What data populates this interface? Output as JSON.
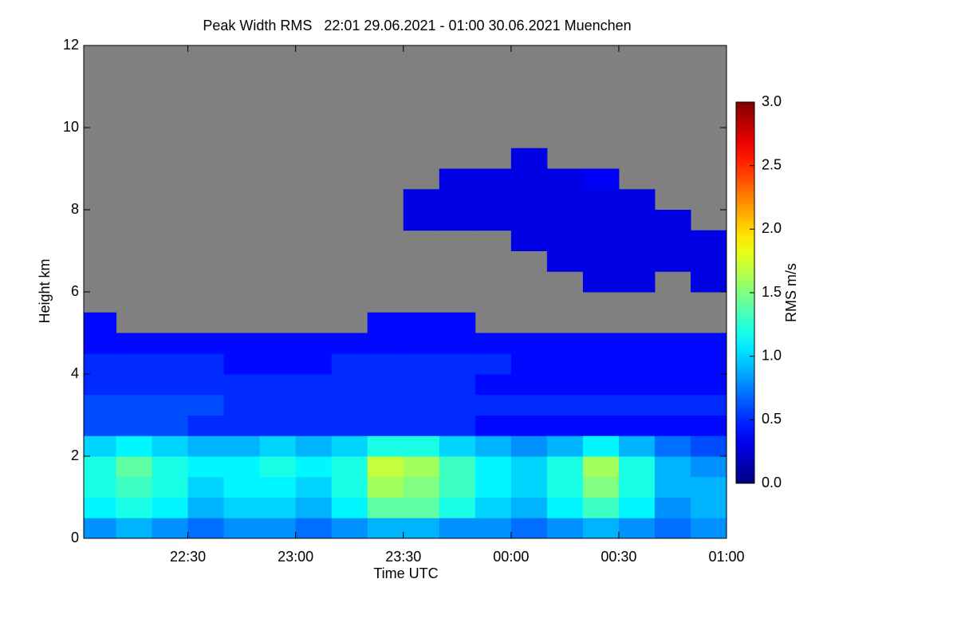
{
  "chart_data": {
    "type": "heatmap",
    "title": "Peak Width RMS   22:01 29.06.2021 - 01:00 30.06.2021 Muenchen",
    "x_label": "Time UTC",
    "y_label": "Height km",
    "colorbar_label": "RMS m/s",
    "xlim": [
      1,
      180
    ],
    "xticks": [
      {
        "value": 30,
        "label": "22:30"
      },
      {
        "value": 60,
        "label": "23:00"
      },
      {
        "value": 90,
        "label": "23:30"
      },
      {
        "value": 120,
        "label": "00:00"
      },
      {
        "value": 150,
        "label": "00:30"
      },
      {
        "value": 180,
        "label": "01:00"
      }
    ],
    "ylim": [
      0,
      12
    ],
    "yticks": [
      0,
      2,
      4,
      6,
      8,
      10,
      12
    ],
    "clim": [
      0,
      3
    ],
    "cticks": [
      {
        "value": 0,
        "label": "0.0"
      },
      {
        "value": 0.5,
        "label": "0.5"
      },
      {
        "value": 1,
        "label": "1.0"
      },
      {
        "value": 1.5,
        "label": "1.5"
      },
      {
        "value": 2,
        "label": "2.0"
      },
      {
        "value": 2.5,
        "label": "2.5"
      },
      {
        "value": 3,
        "label": "3.0"
      }
    ],
    "colormap": "jet",
    "missing_color": "#808080",
    "xbins": [
      1,
      10,
      20,
      30,
      40,
      50,
      60,
      70,
      80,
      90,
      100,
      110,
      120,
      130,
      140,
      150,
      160,
      170,
      180
    ],
    "ybins": [
      0,
      0.5,
      1,
      1.5,
      2,
      2.5,
      3,
      3.5,
      4,
      4.5,
      5,
      5.5,
      6,
      6.5,
      7,
      7.5,
      8,
      8.5,
      9,
      9.5
    ],
    "z": [
      [
        0.8,
        0.9,
        0.8,
        0.7,
        0.8,
        0.8,
        0.7,
        0.8,
        0.9,
        0.9,
        0.8,
        0.8,
        0.7,
        0.8,
        0.9,
        0.8,
        0.7,
        0.8
      ],
      [
        1.1,
        1.2,
        1.1,
        0.9,
        1.0,
        1.0,
        0.9,
        1.1,
        1.4,
        1.4,
        1.2,
        1.0,
        0.9,
        1.1,
        1.3,
        1.1,
        0.8,
        0.9
      ],
      [
        1.2,
        1.3,
        1.2,
        1.0,
        1.1,
        1.1,
        1.0,
        1.2,
        1.6,
        1.5,
        1.3,
        1.1,
        1.0,
        1.2,
        1.5,
        1.2,
        0.9,
        0.9
      ],
      [
        1.2,
        1.4,
        1.2,
        1.1,
        1.1,
        1.2,
        1.1,
        1.2,
        1.7,
        1.6,
        1.3,
        1.1,
        1.0,
        1.2,
        1.6,
        1.2,
        0.9,
        0.8
      ],
      [
        1.0,
        1.1,
        1.0,
        0.9,
        0.9,
        1.0,
        0.9,
        1.0,
        1.2,
        1.2,
        1.0,
        0.9,
        0.8,
        0.9,
        1.1,
        0.9,
        0.7,
        0.6
      ],
      [
        0.6,
        0.6,
        0.6,
        0.5,
        0.5,
        0.5,
        0.5,
        0.5,
        0.5,
        0.5,
        0.5,
        0.4,
        0.4,
        0.4,
        0.4,
        0.4,
        0.4,
        0.4
      ],
      [
        0.6,
        0.6,
        0.6,
        0.6,
        0.5,
        0.5,
        0.5,
        0.5,
        0.5,
        0.5,
        0.5,
        0.5,
        0.5,
        0.5,
        0.5,
        0.5,
        0.5,
        0.5
      ],
      [
        0.5,
        0.5,
        0.5,
        0.5,
        0.5,
        0.5,
        0.5,
        0.5,
        0.5,
        0.5,
        0.5,
        0.4,
        0.4,
        0.4,
        0.4,
        0.4,
        0.4,
        0.4
      ],
      [
        0.5,
        0.5,
        0.5,
        0.5,
        0.4,
        0.4,
        0.4,
        0.5,
        0.5,
        0.5,
        0.5,
        0.5,
        0.4,
        0.4,
        0.4,
        0.4,
        0.4,
        0.4
      ],
      [
        0.4,
        0.4,
        0.4,
        0.4,
        0.4,
        0.4,
        0.4,
        0.4,
        0.4,
        0.4,
        0.4,
        0.4,
        0.4,
        0.4,
        0.4,
        0.4,
        0.4,
        0.4
      ],
      [
        0.4,
        null,
        null,
        null,
        null,
        null,
        null,
        null,
        0.4,
        0.4,
        0.4,
        null,
        null,
        null,
        null,
        null,
        null,
        null
      ],
      [
        null,
        null,
        null,
        null,
        null,
        null,
        null,
        null,
        null,
        null,
        null,
        null,
        null,
        null,
        null,
        null,
        null,
        null
      ],
      [
        null,
        null,
        null,
        null,
        null,
        null,
        null,
        null,
        null,
        null,
        null,
        null,
        null,
        null,
        0.3,
        0.3,
        null,
        0.3
      ],
      [
        null,
        null,
        null,
        null,
        null,
        null,
        null,
        null,
        null,
        null,
        null,
        null,
        null,
        0.3,
        0.3,
        0.3,
        0.3,
        0.3
      ],
      [
        null,
        null,
        null,
        null,
        null,
        null,
        null,
        null,
        null,
        null,
        null,
        null,
        0.3,
        0.3,
        0.3,
        0.3,
        0.3,
        0.3
      ],
      [
        null,
        null,
        null,
        null,
        null,
        null,
        null,
        null,
        null,
        0.3,
        0.3,
        0.3,
        0.3,
        0.3,
        0.3,
        0.3,
        0.3,
        null
      ],
      [
        null,
        null,
        null,
        null,
        null,
        null,
        null,
        null,
        null,
        0.3,
        0.3,
        0.3,
        0.3,
        0.3,
        0.3,
        0.3,
        null,
        null
      ],
      [
        null,
        null,
        null,
        null,
        null,
        null,
        null,
        null,
        null,
        null,
        0.3,
        0.3,
        0.3,
        0.3,
        0.35,
        null,
        null,
        null
      ],
      [
        null,
        null,
        null,
        null,
        null,
        null,
        null,
        null,
        null,
        null,
        null,
        null,
        0.3,
        null,
        null,
        null,
        null,
        null
      ]
    ]
  }
}
